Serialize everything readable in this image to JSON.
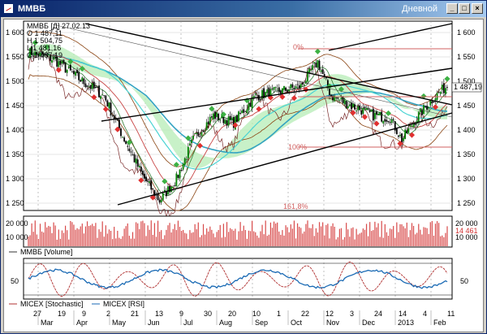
{
  "window": {
    "title": "ММВБ",
    "period": "Дневной",
    "buttons": {
      "minimize": "_",
      "maximize": "□",
      "close": "×"
    }
  },
  "info_box": {
    "lines": [
      "ММВБ [Д] 27.02.13",
      "О  1 487,11",
      "Н  1 504,75",
      "L  1 481,16",
      "С  1 487,19"
    ]
  },
  "price_panel": {
    "y_ticks": [
      "1 600",
      "1 550",
      "1 500",
      "1 450",
      "1 400",
      "1 350",
      "1 300",
      "1 250"
    ],
    "last_price": "1 487,19",
    "fib_labels": [
      "0%",
      "100%",
      "161,8%"
    ]
  },
  "volume_panel": {
    "y_ticks": [
      "20 000",
      "10 000"
    ],
    "last_value": "14 461",
    "legend": "ММВБ [Volume]"
  },
  "osc_panel": {
    "y_ticks": [
      "50"
    ],
    "legend_stoch": "MICEX [Stochastic]",
    "legend_rsi": "MICEX [RSI]"
  },
  "x_axis": {
    "days": [
      "27",
      "19",
      "9",
      "2",
      "21",
      "13",
      "9",
      "30",
      "20",
      "10",
      "1",
      "22",
      "12",
      "3",
      "24",
      "14",
      "4",
      "11"
    ],
    "months": [
      "Mar",
      "Apr",
      "May",
      "Jun",
      "Jul",
      "Aug",
      "Sep",
      "Oct",
      "Nov",
      "Dec",
      "2013",
      "Feb"
    ]
  },
  "colors": {
    "candle_up": "#008000",
    "candle_down": "#000000",
    "cloud": "#b5ecb5",
    "ma_teal": "#33a3c2",
    "ma_cyan": "#49d3d3",
    "ma_red": "#c84545",
    "ma_brown": "#8b4513",
    "volume_bar": "#d84a4a",
    "stoch": "#b03030",
    "rsi": "#1a6ab4",
    "fib": "#d06060",
    "channel": "#000000"
  }
}
